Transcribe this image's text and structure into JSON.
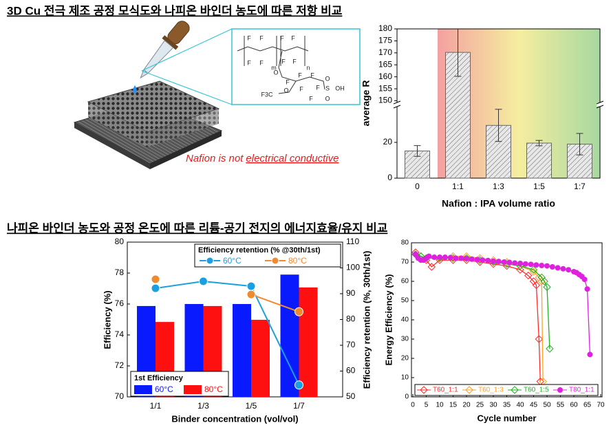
{
  "headings": [
    "3D Cu 전극 제조 공정 모식도와 나피온 바인더 농도에 따른 저항 비교",
    "나피온 바인더 농도와 공정 온도에 따른 리튬-공기 전지의 에너지효율/유지 비교"
  ],
  "illustration": {
    "caption": "Nafion is not",
    "caption_underlined": "electrical conductive",
    "structure_labels": [
      "F",
      "F",
      "F",
      "F",
      "F",
      "F",
      "F",
      "F",
      "m",
      "n",
      "O",
      "F",
      "F",
      "F",
      "F",
      "F3C",
      "O",
      "F",
      "F",
      "S",
      "O",
      "O",
      "OH"
    ]
  },
  "chart_data": [
    {
      "type": "bar",
      "x_label": "Nafion : IPA volume ratio",
      "y_label": "average R",
      "categories": [
        "0",
        "1:1",
        "1:3",
        "1:5",
        "1:7"
      ],
      "values": [
        15.2,
        170.2,
        29.5,
        19.6,
        19
      ],
      "errors": [
        3,
        10,
        9,
        1.5,
        6
      ],
      "color": "#666666",
      "hatch": true,
      "ylim": [
        0,
        180
      ],
      "axis_break": [
        40,
        149
      ],
      "yticks": [
        0,
        20,
        150,
        155,
        160,
        165,
        170,
        175,
        180
      ],
      "background_gradient": [
        "#f4a0a0",
        "#f5eea0",
        "#a8d8a0"
      ]
    },
    {
      "type": "bar",
      "x_label": "Binder concentration (vol/vol)",
      "y_label": "Efficiency (%)",
      "y2_label": "Efficiency retention (%, 30th/1st)",
      "categories": [
        "1/1",
        "1/3",
        "1/5",
        "1/7"
      ],
      "legend_title": "Efficiency retention (% @30th/1st)",
      "bar_legend_title": "1st Efficiency",
      "series": [
        {
          "name": "60°C",
          "color": "#0a1aff",
          "values": [
            75.87,
            76.0,
            76.0,
            77.9
          ]
        },
        {
          "name": "80°C",
          "color": "#ff1010",
          "values": [
            74.84,
            75.87,
            74.98,
            77.07
          ]
        },
        {
          "name": "60°C",
          "type": "line",
          "axis": "y2",
          "color": "#1aa0e0",
          "values": [
            92.1,
            94.8,
            92.9,
            54.6
          ]
        },
        {
          "name": "80°C",
          "type": "line",
          "axis": "y2",
          "color": "#f08a30",
          "values": [
            95.6,
            null,
            89.7,
            83
          ]
        }
      ],
      "ylim": [
        70,
        80
      ],
      "yticks": [
        70,
        72,
        74,
        76,
        78,
        80
      ],
      "y2lim": [
        50,
        110
      ],
      "y2ticks": [
        50,
        60,
        70,
        80,
        90,
        100,
        110
      ]
    },
    {
      "type": "line",
      "x_label": "Cycle number",
      "y_label": "Energy Efficiency (%)",
      "xlim": [
        0,
        70
      ],
      "xticks": [
        0,
        5,
        10,
        15,
        20,
        25,
        30,
        35,
        40,
        45,
        50,
        55,
        60,
        65,
        70
      ],
      "ylim": [
        0,
        80
      ],
      "yticks": [
        0,
        10,
        20,
        30,
        40,
        50,
        60,
        70,
        80
      ],
      "series": [
        {
          "name": "T60_1:1",
          "color": "#ff2a2a",
          "marker": "diamond",
          "x": [
            1,
            3,
            5,
            7,
            10,
            15,
            20,
            25,
            30,
            35,
            40,
            43,
            45,
            46,
            47,
            47.5
          ],
          "values": [
            75,
            73,
            71,
            67.5,
            71,
            71,
            71,
            70,
            69,
            68,
            66,
            63,
            60,
            58,
            30,
            8
          ]
        },
        {
          "name": "T60_1:3",
          "color": "#ffa020",
          "marker": "diamond",
          "x": [
            1,
            3,
            5,
            10,
            15,
            20,
            25,
            30,
            35,
            40,
            45,
            47,
            48,
            48.5
          ],
          "values": [
            74,
            73,
            72,
            72,
            73,
            73,
            72,
            71,
            70,
            68,
            65,
            62,
            60,
            8
          ]
        },
        {
          "name": "T60_1:5",
          "color": "#22b022",
          "marker": "diamond",
          "x": [
            1,
            3,
            5,
            10,
            15,
            20,
            25,
            30,
            35,
            40,
            45,
            48,
            49,
            50,
            51
          ],
          "values": [
            74,
            73,
            72,
            72,
            72,
            72,
            71,
            70,
            69,
            68,
            66,
            62,
            60,
            57,
            25
          ]
        },
        {
          "name": "T80_1:1",
          "color": "#e020e0",
          "marker": "circle",
          "x": [
            1,
            2,
            3,
            4,
            5,
            6,
            8,
            10,
            12,
            14,
            16,
            18,
            20,
            22,
            24,
            26,
            28,
            30,
            32,
            34,
            36,
            38,
            40,
            42,
            44,
            46,
            48,
            50,
            52,
            54,
            56,
            58,
            60,
            61,
            62,
            63,
            64,
            65,
            66
          ],
          "values": [
            74,
            72,
            71,
            71,
            72,
            73,
            72.5,
            72.5,
            72.5,
            72.3,
            72,
            72,
            71.8,
            71.5,
            71.3,
            71,
            70.8,
            70.5,
            70.3,
            70,
            69.8,
            69.5,
            69.3,
            69,
            68.8,
            68.5,
            68.2,
            68,
            67.5,
            67,
            66.5,
            66,
            65,
            64.5,
            63.5,
            62.5,
            61,
            56,
            22
          ]
        }
      ]
    }
  ]
}
